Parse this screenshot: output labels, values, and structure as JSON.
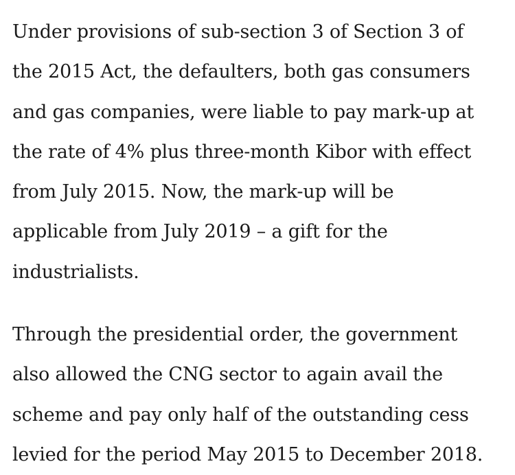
{
  "article": {
    "paragraphs": [
      {
        "lines": [
          "Under provisions of sub-section 3 of Section 3 of",
          "the 2015 Act, the defaulters, both gas consumers",
          "and gas companies, were liable to pay mark-up at",
          "the rate of 4% plus three-month Kibor with effect",
          "from July 2015. Now, the mark-up will be",
          "applicable from July 2019 – a gift for the",
          "industrialists."
        ]
      },
      {
        "lines": [
          "Through the presidential order, the government",
          "also allowed the CNG sector to again avail the",
          "scheme and pay only half of the outstanding cess",
          "levied for the period May 2015 to December 2018."
        ]
      }
    ]
  }
}
